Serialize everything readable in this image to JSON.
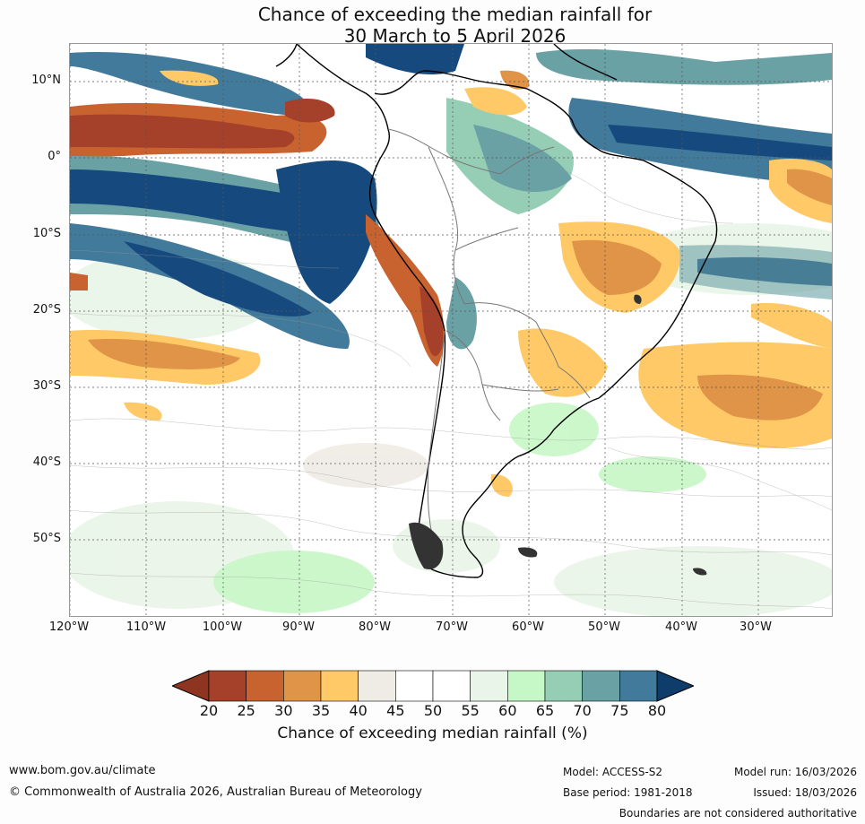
{
  "title": {
    "line1": "Chance of exceeding the median rainfall for",
    "line2": "30 March to 5 April 2026"
  },
  "map": {
    "region": "South America and adjacent oceans",
    "lat_labels": [
      "10°N",
      "0°",
      "10°S",
      "20°S",
      "30°S",
      "40°S",
      "50°S"
    ],
    "lon_labels": [
      "120°W",
      "110°W",
      "100°W",
      "90°W",
      "80°W",
      "70°W",
      "60°W",
      "50°W",
      "40°W",
      "30°W"
    ]
  },
  "colorbar": {
    "ticks": [
      "20",
      "25",
      "30",
      "35",
      "40",
      "45",
      "50",
      "55",
      "60",
      "65",
      "70",
      "75",
      "80"
    ],
    "colors": [
      "#a5402a",
      "#c8622f",
      "#e09448",
      "#fec966",
      "#efece6",
      "#ffffff",
      "#ffffff",
      "#e9f5e8",
      "#c6f7c6",
      "#96ceb5",
      "#6aa1a5",
      "#427a9b",
      "#164a7e"
    ],
    "low_color": "#8e3522",
    "high_color": "#0e3d6b",
    "label": "Chance of exceeding median rainfall (%)"
  },
  "footer": {
    "url": "www.bom.gov.au/climate",
    "copyright": "© Commonwealth of Australia 2026, Australian Bureau of Meteorology",
    "model": "Model: ACCESS-S2",
    "base_period": "Base period: 1981-2018",
    "model_run": "Model run: 16/03/2026",
    "issued": "Issued: 18/03/2026",
    "disclaimer": "Boundaries are not considered authoritative"
  }
}
